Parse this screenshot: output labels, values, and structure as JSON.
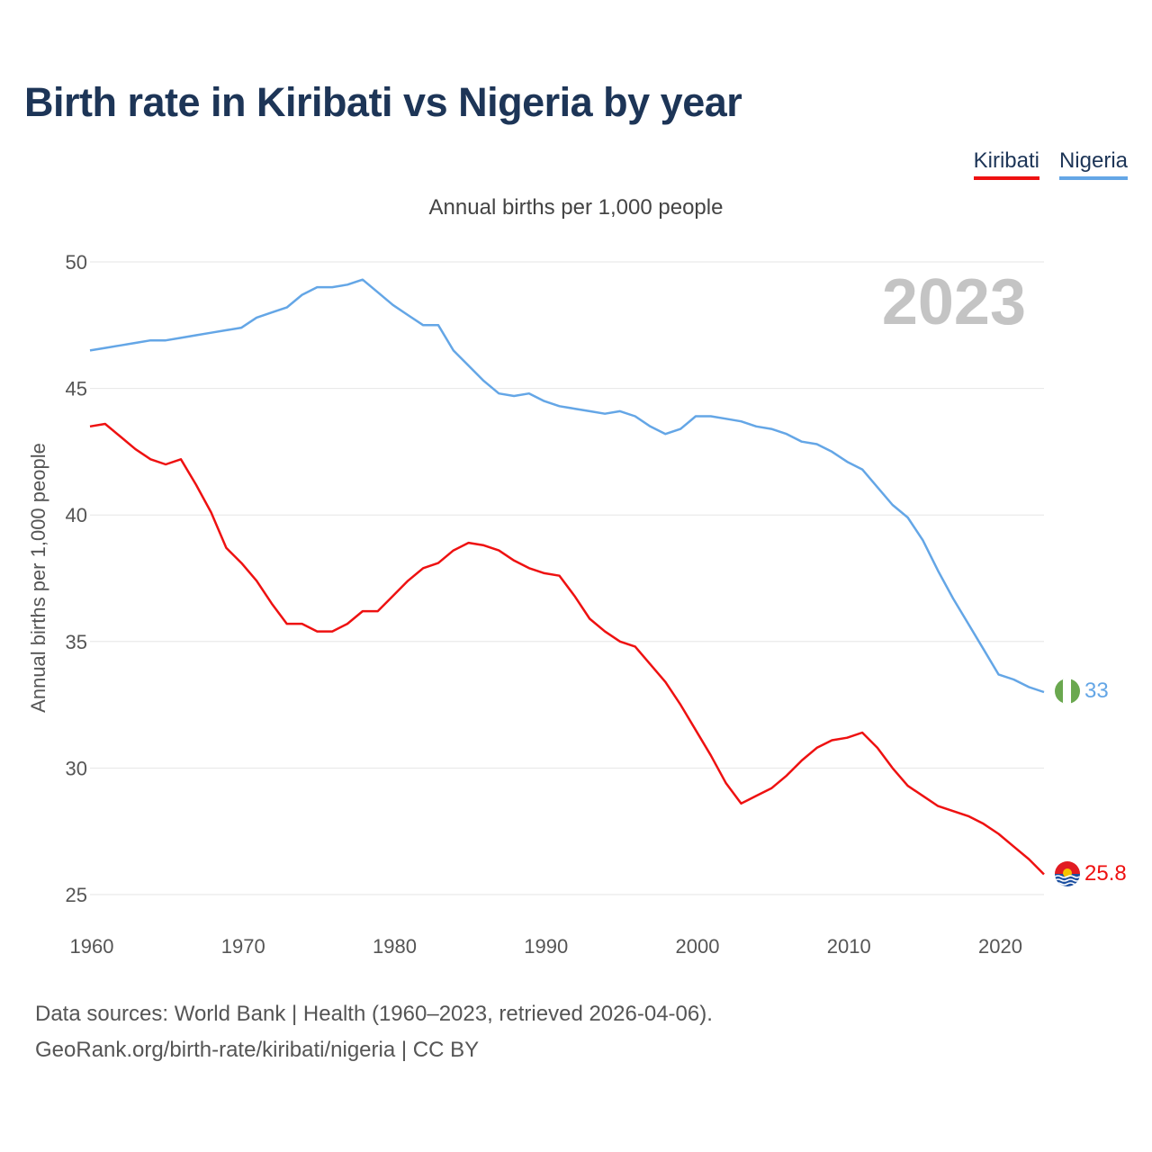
{
  "title": "Birth rate in Kiribati vs Nigeria by year",
  "legend": [
    {
      "name": "Kiribati",
      "color": "#ee1111"
    },
    {
      "name": "Nigeria",
      "color": "#64a6e6"
    }
  ],
  "subtitle": "Annual births per 1,000 people",
  "year_badge": "2023",
  "sources": {
    "line1": "Data sources: World Bank | Health (1960–2023, retrieved 2026-04-06).",
    "line2": "GeoRank.org/birth-rate/kiribati/nigeria | CC BY"
  },
  "chart_data": {
    "type": "line",
    "title": "Birth rate in Kiribati vs Nigeria by year",
    "xlabel": "",
    "ylabel": "Annual births per 1,000 people",
    "xlim": [
      1960,
      2023
    ],
    "ylim": [
      25,
      50
    ],
    "x_ticks": [
      1960,
      1970,
      1980,
      1990,
      2000,
      2010,
      2020
    ],
    "y_ticks": [
      25,
      30,
      35,
      40,
      45,
      50
    ],
    "grid": true,
    "x": [
      1960,
      1961,
      1962,
      1963,
      1964,
      1965,
      1966,
      1967,
      1968,
      1969,
      1970,
      1971,
      1972,
      1973,
      1974,
      1975,
      1976,
      1977,
      1978,
      1979,
      1980,
      1981,
      1982,
      1983,
      1984,
      1985,
      1986,
      1987,
      1988,
      1989,
      1990,
      1991,
      1992,
      1993,
      1994,
      1995,
      1996,
      1997,
      1998,
      1999,
      2000,
      2001,
      2002,
      2003,
      2004,
      2005,
      2006,
      2007,
      2008,
      2009,
      2010,
      2011,
      2012,
      2013,
      2014,
      2015,
      2016,
      2017,
      2018,
      2019,
      2020,
      2021,
      2022,
      2023
    ],
    "series": [
      {
        "name": "Kiribati",
        "color": "#ee1111",
        "end_label": "25.8",
        "values": [
          43.5,
          43.6,
          43.1,
          42.6,
          42.2,
          42.0,
          42.2,
          41.2,
          40.1,
          38.7,
          38.1,
          37.4,
          36.5,
          35.7,
          35.7,
          35.4,
          35.4,
          35.7,
          36.2,
          36.2,
          36.8,
          37.4,
          37.9,
          38.1,
          38.6,
          38.9,
          38.8,
          38.6,
          38.2,
          37.9,
          37.7,
          37.6,
          36.8,
          35.9,
          35.4,
          35.0,
          34.8,
          34.1,
          33.4,
          32.5,
          31.5,
          30.5,
          29.4,
          28.6,
          28.9,
          29.2,
          29.7,
          30.3,
          30.8,
          31.1,
          31.2,
          31.4,
          30.8,
          30.0,
          29.3,
          28.9,
          28.5,
          28.3,
          28.1,
          27.8,
          27.4,
          26.9,
          26.4,
          25.8
        ]
      },
      {
        "name": "Nigeria",
        "color": "#64a6e6",
        "end_label": "33",
        "values": [
          46.5,
          46.6,
          46.7,
          46.8,
          46.9,
          46.9,
          47.0,
          47.1,
          47.2,
          47.3,
          47.4,
          47.8,
          48.0,
          48.2,
          48.7,
          49.0,
          49.0,
          49.1,
          49.3,
          48.8,
          48.3,
          47.9,
          47.5,
          47.5,
          46.5,
          45.9,
          45.3,
          44.8,
          44.7,
          44.8,
          44.5,
          44.3,
          44.2,
          44.1,
          44.0,
          44.1,
          43.9,
          43.5,
          43.2,
          43.4,
          43.9,
          43.9,
          43.8,
          43.7,
          43.5,
          43.4,
          43.2,
          42.9,
          42.8,
          42.5,
          42.1,
          41.8,
          41.1,
          40.4,
          39.9,
          39.0,
          37.8,
          36.7,
          35.7,
          34.7,
          33.7,
          33.5,
          33.2,
          33.0
        ]
      }
    ]
  }
}
